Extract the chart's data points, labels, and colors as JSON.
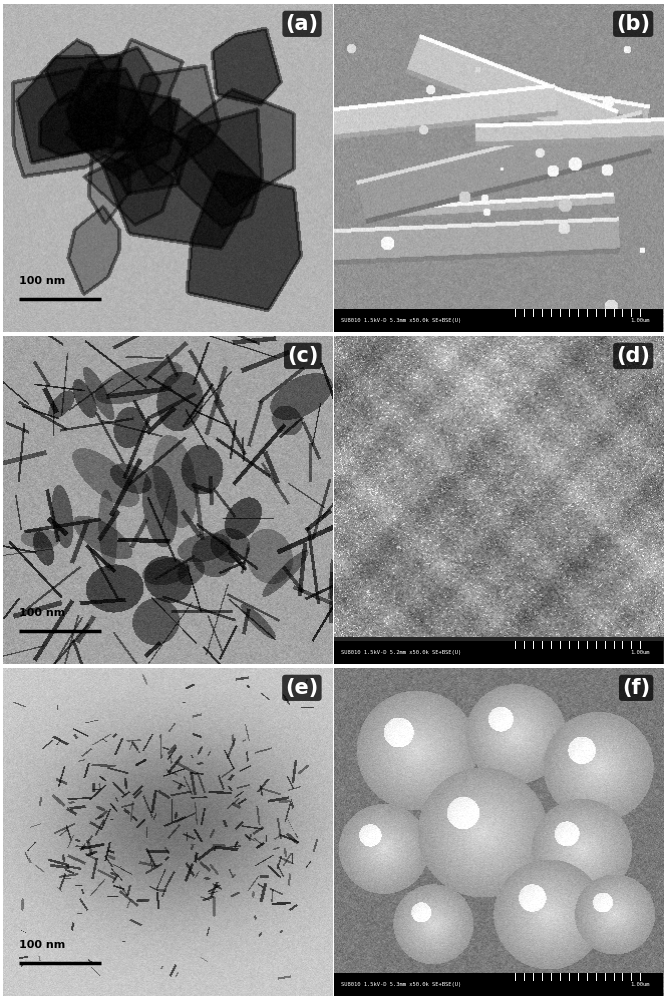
{
  "figure_width": 6.66,
  "figure_height": 10.0,
  "dpi": 100,
  "labels": [
    "(a)",
    "(b)",
    "(c)",
    "(d)",
    "(e)",
    "(f)"
  ],
  "label_fontsize": 15,
  "label_fontweight": "bold",
  "scalebar_labels": [
    "100 nm",
    "100 nm",
    "100 nm"
  ],
  "sem_footer_b": "SU8010 1.5kV-D 5.3mm x50.0k SE+BSE(U)",
  "sem_footer_d": "SU8010 1.5kV-D 5.2mm x50.0k SE+BSE(U)",
  "sem_footer_f": "SU8010 1.5kV-D 5.3mm x50.0k SE+BSE(U)",
  "sem_scale_b": "1.00um",
  "sem_scale_d": "1.00um",
  "sem_scale_f": "1.00um"
}
